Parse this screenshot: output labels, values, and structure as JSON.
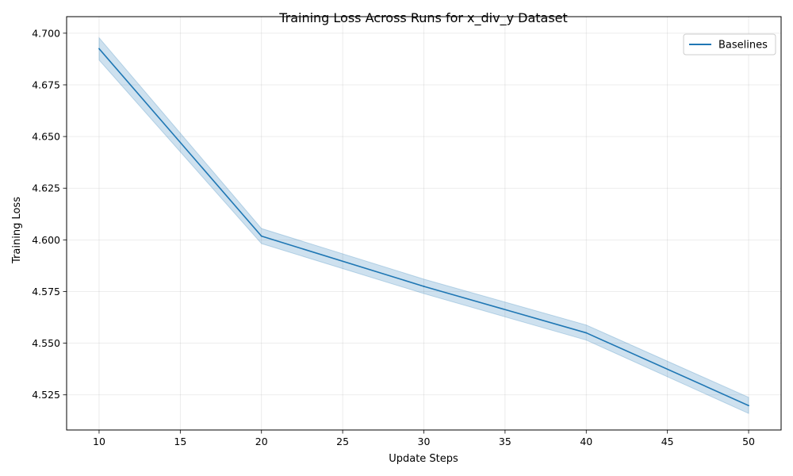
{
  "chart_data": {
    "type": "line",
    "title": "Training Loss Across Runs for x_div_y Dataset",
    "xlabel": "Update Steps",
    "ylabel": "Training Loss",
    "xlim": [
      8,
      52
    ],
    "ylim": [
      4.508,
      4.708
    ],
    "xticks": [
      10,
      15,
      20,
      25,
      30,
      35,
      40,
      45,
      50
    ],
    "xtick_labels": [
      "10",
      "15",
      "20",
      "25",
      "30",
      "35",
      "40",
      "45",
      "50"
    ],
    "yticks": [
      4.525,
      4.55,
      4.575,
      4.6,
      4.625,
      4.65,
      4.675,
      4.7
    ],
    "ytick_labels": [
      "4.525",
      "4.550",
      "4.575",
      "4.600",
      "4.625",
      "4.650",
      "4.675",
      "4.700"
    ],
    "grid": true,
    "legend_position": "top-right",
    "series": [
      {
        "name": "Baselines",
        "color": "#1f77b4",
        "band_color": "#1f77b4",
        "x": [
          10,
          20,
          30,
          40,
          50
        ],
        "values": [
          4.6925,
          4.6018,
          4.5775,
          4.555,
          4.5198
        ],
        "lower": [
          4.687,
          4.5982,
          4.574,
          4.5515,
          4.516
        ],
        "upper": [
          4.6978,
          4.6055,
          4.581,
          4.5588,
          4.5238
        ]
      }
    ]
  }
}
